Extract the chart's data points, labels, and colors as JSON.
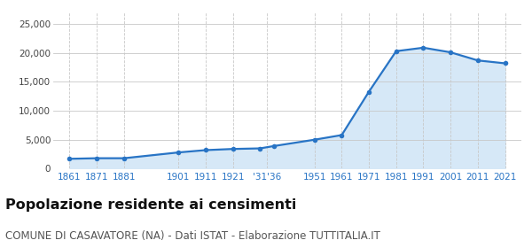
{
  "years": [
    1861,
    1871,
    1881,
    1901,
    1911,
    1921,
    1931,
    1936,
    1951,
    1961,
    1971,
    1981,
    1991,
    2001,
    2011,
    2021
  ],
  "population": [
    1700,
    1800,
    1800,
    2800,
    3200,
    3400,
    3500,
    3900,
    5000,
    5800,
    13300,
    20300,
    20900,
    20100,
    18700,
    18200
  ],
  "x_tick_labels": [
    "1861",
    "1871",
    "1881",
    "1901",
    "1911",
    "1921",
    "'31'36",
    "1951",
    "1961",
    "1971",
    "1981",
    "1991",
    "2001",
    "2011",
    "2021"
  ],
  "x_tick_positions": [
    1861,
    1871,
    1881,
    1901,
    1911,
    1921,
    1933.5,
    1951,
    1961,
    1971,
    1981,
    1991,
    2001,
    2011,
    2021
  ],
  "line_color": "#2874c5",
  "fill_color": "#d6e8f7",
  "marker_color": "#2874c5",
  "grid_color": "#c8c8c8",
  "background_color": "#ffffff",
  "title": "Popolazione residente ai censimenti",
  "subtitle": "COMUNE DI CASAVATORE (NA) - Dati ISTAT - Elaborazione TUTTITALIA.IT",
  "ylim": [
    0,
    27000
  ],
  "yticks": [
    0,
    5000,
    10000,
    15000,
    20000,
    25000
  ],
  "xlim_left": 1855,
  "xlim_right": 2027,
  "title_fontsize": 11.5,
  "subtitle_fontsize": 8.5
}
